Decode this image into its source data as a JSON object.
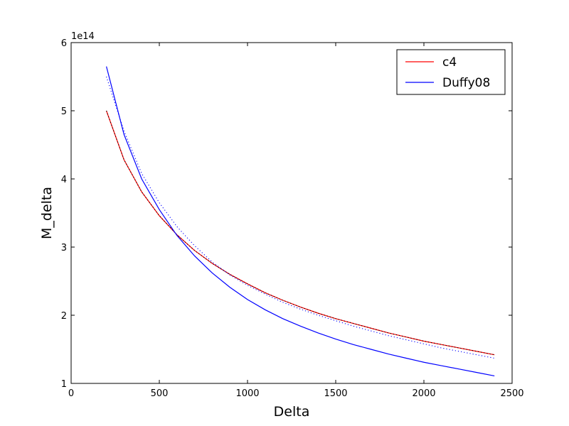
{
  "chart_data": {
    "type": "line",
    "xlabel": "Delta",
    "ylabel": "M_delta",
    "y_offset_label": "1e14",
    "xlim": [
      0,
      2500
    ],
    "ylim": [
      1,
      6
    ],
    "x_ticks": [
      "0",
      "500",
      "1000",
      "1500",
      "2000",
      "2500"
    ],
    "x_tick_values": [
      0,
      500,
      1000,
      1500,
      2000,
      2500
    ],
    "y_ticks": [
      "1",
      "2",
      "3",
      "4",
      "5",
      "6"
    ],
    "y_tick_values": [
      1,
      2,
      3,
      4,
      5,
      6
    ],
    "grid": false,
    "legend_position": "top-right",
    "x": [
      200,
      300,
      400,
      500,
      600,
      700,
      800,
      900,
      1000,
      1100,
      1200,
      1300,
      1400,
      1500,
      1600,
      1700,
      1800,
      1900,
      2000,
      2100,
      2200,
      2300,
      2400
    ],
    "series": [
      {
        "name": "c4",
        "color": "#ff0000",
        "style": "solid",
        "values": [
          5.0,
          4.28,
          3.81,
          3.46,
          3.18,
          2.95,
          2.76,
          2.6,
          2.46,
          2.33,
          2.22,
          2.12,
          2.03,
          1.95,
          1.88,
          1.81,
          1.74,
          1.68,
          1.62,
          1.57,
          1.52,
          1.47,
          1.42
        ]
      },
      {
        "color": "#000000",
        "style": "dotted",
        "values": [
          5.0,
          4.28,
          3.81,
          3.46,
          3.18,
          2.95,
          2.76,
          2.6,
          2.46,
          2.33,
          2.22,
          2.12,
          2.03,
          1.95,
          1.88,
          1.81,
          1.74,
          1.68,
          1.62,
          1.57,
          1.52,
          1.47,
          1.42
        ]
      },
      {
        "name": "Duffy08",
        "color": "#0000ff",
        "style": "solid",
        "values": [
          5.65,
          4.65,
          4.0,
          3.55,
          3.17,
          2.87,
          2.62,
          2.41,
          2.23,
          2.08,
          1.95,
          1.84,
          1.74,
          1.65,
          1.57,
          1.5,
          1.43,
          1.37,
          1.31,
          1.26,
          1.21,
          1.16,
          1.11
        ]
      },
      {
        "color": "#0000ff",
        "style": "dotted",
        "values": [
          5.5,
          4.7,
          4.08,
          3.65,
          3.3,
          3.02,
          2.78,
          2.59,
          2.44,
          2.31,
          2.19,
          2.09,
          2.0,
          1.92,
          1.84,
          1.77,
          1.7,
          1.64,
          1.58,
          1.52,
          1.47,
          1.42,
          1.37
        ]
      }
    ],
    "legend": [
      {
        "label": "c4",
        "color": "#ff0000"
      },
      {
        "label": "Duffy08",
        "color": "#0000ff"
      }
    ]
  }
}
